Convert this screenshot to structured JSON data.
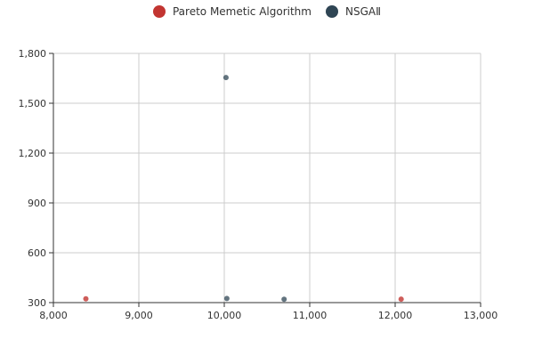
{
  "chart_data": {
    "type": "scatter",
    "legend_position": "top-center",
    "grid": true,
    "xlim": [
      8000,
      13000
    ],
    "ylim": [
      300,
      1800
    ],
    "x_ticks": [
      8000,
      9000,
      10000,
      11000,
      12000,
      13000
    ],
    "y_ticks": [
      300,
      600,
      900,
      1200,
      1500,
      1800
    ],
    "x_tick_labels": [
      "8,000",
      "9,000",
      "10,000",
      "11,000",
      "12,000",
      "13,000"
    ],
    "y_tick_labels": [
      "300",
      "600",
      "900",
      "1,200",
      "1,500",
      "1,800"
    ],
    "series": [
      {
        "name": "Pareto Memetic Algorithm",
        "color": "#c23531",
        "points": [
          {
            "x": 8380,
            "y": 323
          },
          {
            "x": 12070,
            "y": 321
          }
        ]
      },
      {
        "name": "NSGAⅡ",
        "color": "#2f4554",
        "points": [
          {
            "x": 10020,
            "y": 1655
          },
          {
            "x": 10030,
            "y": 325
          },
          {
            "x": 10700,
            "y": 320
          }
        ]
      }
    ]
  }
}
